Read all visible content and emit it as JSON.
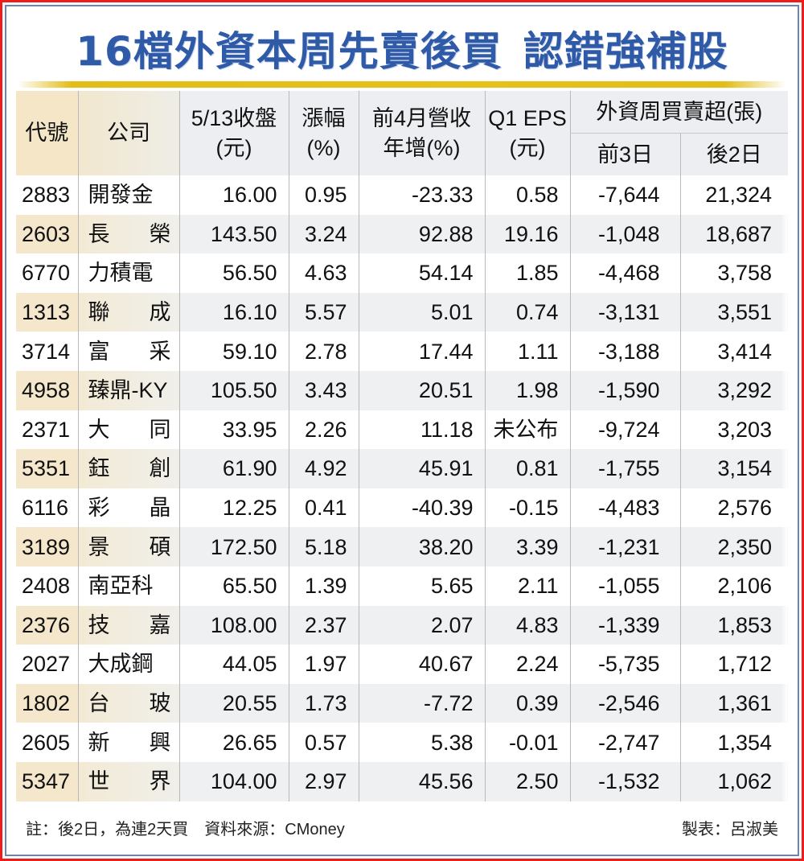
{
  "title_part1": "16檔外資本周先賣後買",
  "title_part2": "認錯強補股",
  "colors": {
    "title": "#2f5aa8",
    "border_outer": "#ee1c1c",
    "border_inner": "#6f83a6",
    "band": "#e3bd17"
  },
  "headers": {
    "code": "代號",
    "company": "公司",
    "close_l1": "5/13收盤",
    "close_l2": "(元)",
    "change_l1": "漲幅",
    "change_l2": "(%)",
    "rev_l1": "前4月營收",
    "rev_l2": "年增(%)",
    "eps_l1": "Q1 EPS",
    "eps_l2": "(元)",
    "foreign_group": "外資周買賣超(張)",
    "first3": "前3日",
    "last2": "後2日"
  },
  "rows": [
    {
      "code": "2883",
      "company": [
        "開發金"
      ],
      "close": "16.00",
      "change": "0.95",
      "rev": "-23.33",
      "eps": "0.58",
      "first3": "-7,644",
      "last2": "21,324"
    },
    {
      "code": "2603",
      "company": [
        "長",
        "榮"
      ],
      "close": "143.50",
      "change": "3.24",
      "rev": "92.88",
      "eps": "19.16",
      "first3": "-1,048",
      "last2": "18,687"
    },
    {
      "code": "6770",
      "company": [
        "力積電"
      ],
      "close": "56.50",
      "change": "4.63",
      "rev": "54.14",
      "eps": "1.85",
      "first3": "-4,468",
      "last2": "3,758"
    },
    {
      "code": "1313",
      "company": [
        "聯",
        "成"
      ],
      "close": "16.10",
      "change": "5.57",
      "rev": "5.01",
      "eps": "0.74",
      "first3": "-3,131",
      "last2": "3,551"
    },
    {
      "code": "3714",
      "company": [
        "富",
        "采"
      ],
      "close": "59.10",
      "change": "2.78",
      "rev": "17.44",
      "eps": "1.11",
      "first3": "-3,188",
      "last2": "3,414"
    },
    {
      "code": "4958",
      "company": [
        "臻鼎-KY"
      ],
      "close": "105.50",
      "change": "3.43",
      "rev": "20.51",
      "eps": "1.98",
      "first3": "-1,590",
      "last2": "3,292"
    },
    {
      "code": "2371",
      "company": [
        "大",
        "同"
      ],
      "close": "33.95",
      "change": "2.26",
      "rev": "11.18",
      "eps": "未公布",
      "first3": "-9,724",
      "last2": "3,203"
    },
    {
      "code": "5351",
      "company": [
        "鈺",
        "創"
      ],
      "close": "61.90",
      "change": "4.92",
      "rev": "45.91",
      "eps": "0.81",
      "first3": "-1,755",
      "last2": "3,154"
    },
    {
      "code": "6116",
      "company": [
        "彩",
        "晶"
      ],
      "close": "12.25",
      "change": "0.41",
      "rev": "-40.39",
      "eps": "-0.15",
      "first3": "-4,483",
      "last2": "2,576"
    },
    {
      "code": "3189",
      "company": [
        "景",
        "碩"
      ],
      "close": "172.50",
      "change": "5.18",
      "rev": "38.20",
      "eps": "3.39",
      "first3": "-1,231",
      "last2": "2,350"
    },
    {
      "code": "2408",
      "company": [
        "南亞科"
      ],
      "close": "65.50",
      "change": "1.39",
      "rev": "5.65",
      "eps": "2.11",
      "first3": "-1,055",
      "last2": "2,106"
    },
    {
      "code": "2376",
      "company": [
        "技",
        "嘉"
      ],
      "close": "108.00",
      "change": "2.37",
      "rev": "2.07",
      "eps": "4.83",
      "first3": "-1,339",
      "last2": "1,853"
    },
    {
      "code": "2027",
      "company": [
        "大成鋼"
      ],
      "close": "44.05",
      "change": "1.97",
      "rev": "40.67",
      "eps": "2.24",
      "first3": "-5,735",
      "last2": "1,712"
    },
    {
      "code": "1802",
      "company": [
        "台",
        "玻"
      ],
      "close": "20.55",
      "change": "1.73",
      "rev": "-7.72",
      "eps": "0.39",
      "first3": "-2,546",
      "last2": "1,361"
    },
    {
      "code": "2605",
      "company": [
        "新",
        "興"
      ],
      "close": "26.65",
      "change": "0.57",
      "rev": "5.38",
      "eps": "-0.01",
      "first3": "-2,747",
      "last2": "1,354"
    },
    {
      "code": "5347",
      "company": [
        "世",
        "界"
      ],
      "close": "104.00",
      "change": "2.97",
      "rev": "45.56",
      "eps": "2.50",
      "first3": "-1,532",
      "last2": "1,062"
    }
  ],
  "footer": {
    "note": "註：後2日，為連2天買　資料來源：CMoney",
    "maker": "製表：呂淑美"
  },
  "chart_data": {
    "type": "table",
    "title": "16檔外資本周先賣後買 認錯強補股",
    "columns": [
      "代號",
      "公司",
      "5/13收盤(元)",
      "漲幅(%)",
      "前4月營收年增(%)",
      "Q1 EPS(元)",
      "外資周買賣超(張) 前3日",
      "外資周買賣超(張) 後2日"
    ],
    "rows": [
      [
        "2883",
        "開發金",
        16.0,
        0.95,
        -23.33,
        0.58,
        -7644,
        21324
      ],
      [
        "2603",
        "長榮",
        143.5,
        3.24,
        92.88,
        19.16,
        -1048,
        18687
      ],
      [
        "6770",
        "力積電",
        56.5,
        4.63,
        54.14,
        1.85,
        -4468,
        3758
      ],
      [
        "1313",
        "聯成",
        16.1,
        5.57,
        5.01,
        0.74,
        -3131,
        3551
      ],
      [
        "3714",
        "富采",
        59.1,
        2.78,
        17.44,
        1.11,
        -3188,
        3414
      ],
      [
        "4958",
        "臻鼎-KY",
        105.5,
        3.43,
        20.51,
        1.98,
        -1590,
        3292
      ],
      [
        "2371",
        "大同",
        33.95,
        2.26,
        11.18,
        "未公布",
        -9724,
        3203
      ],
      [
        "5351",
        "鈺創",
        61.9,
        4.92,
        45.91,
        0.81,
        -1755,
        3154
      ],
      [
        "6116",
        "彩晶",
        12.25,
        0.41,
        -40.39,
        -0.15,
        -4483,
        2576
      ],
      [
        "3189",
        "景碩",
        172.5,
        5.18,
        38.2,
        3.39,
        -1231,
        2350
      ],
      [
        "2408",
        "南亞科",
        65.5,
        1.39,
        5.65,
        2.11,
        -1055,
        2106
      ],
      [
        "2376",
        "技嘉",
        108.0,
        2.37,
        2.07,
        4.83,
        -1339,
        1853
      ],
      [
        "2027",
        "大成鋼",
        44.05,
        1.97,
        40.67,
        2.24,
        -5735,
        1712
      ],
      [
        "1802",
        "台玻",
        20.55,
        1.73,
        -7.72,
        0.39,
        -2546,
        1361
      ],
      [
        "2605",
        "新興",
        26.65,
        0.57,
        5.38,
        -0.01,
        -2747,
        1354
      ],
      [
        "5347",
        "世界",
        104.0,
        2.97,
        45.56,
        2.5,
        -1532,
        1062
      ]
    ],
    "notes": "註：後2日，為連2天買　資料來源：CMoney",
    "credit": "製表：呂淑美"
  }
}
